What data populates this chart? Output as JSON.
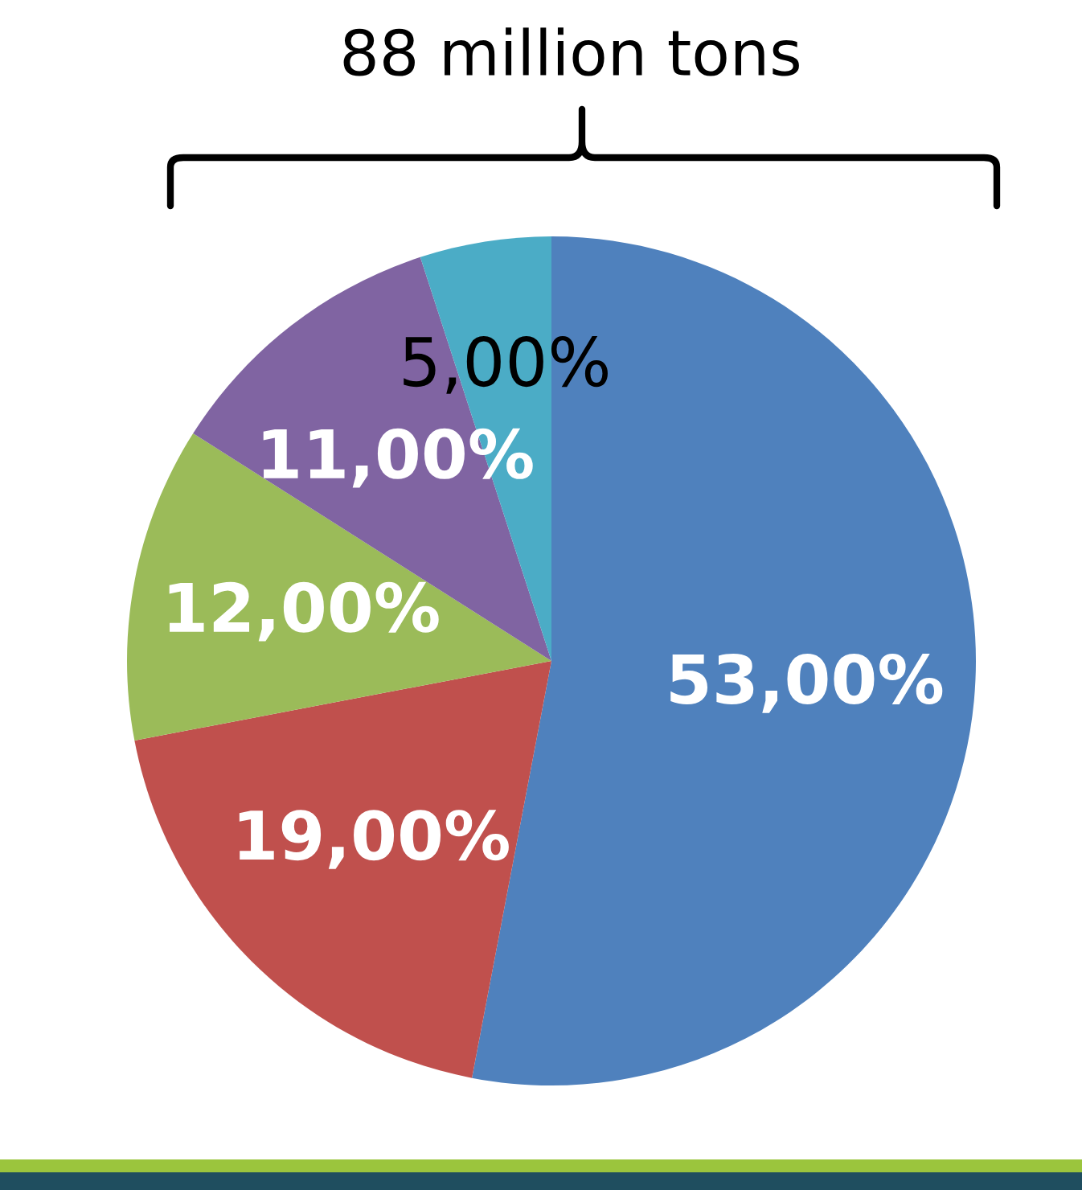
{
  "chart_data": {
    "type": "pie",
    "title": "88 million tons",
    "categories": [
      null,
      null,
      null,
      null,
      null
    ],
    "values": [
      53,
      19,
      12,
      11,
      5
    ],
    "value_labels": [
      "53,00%",
      "19,00%",
      "12,00%",
      "11,00%",
      "5,00%"
    ],
    "colors": [
      "#4f81bd",
      "#c0504d",
      "#9bbb59",
      "#8064a2",
      "#4bacc6"
    ],
    "legend": false
  }
}
